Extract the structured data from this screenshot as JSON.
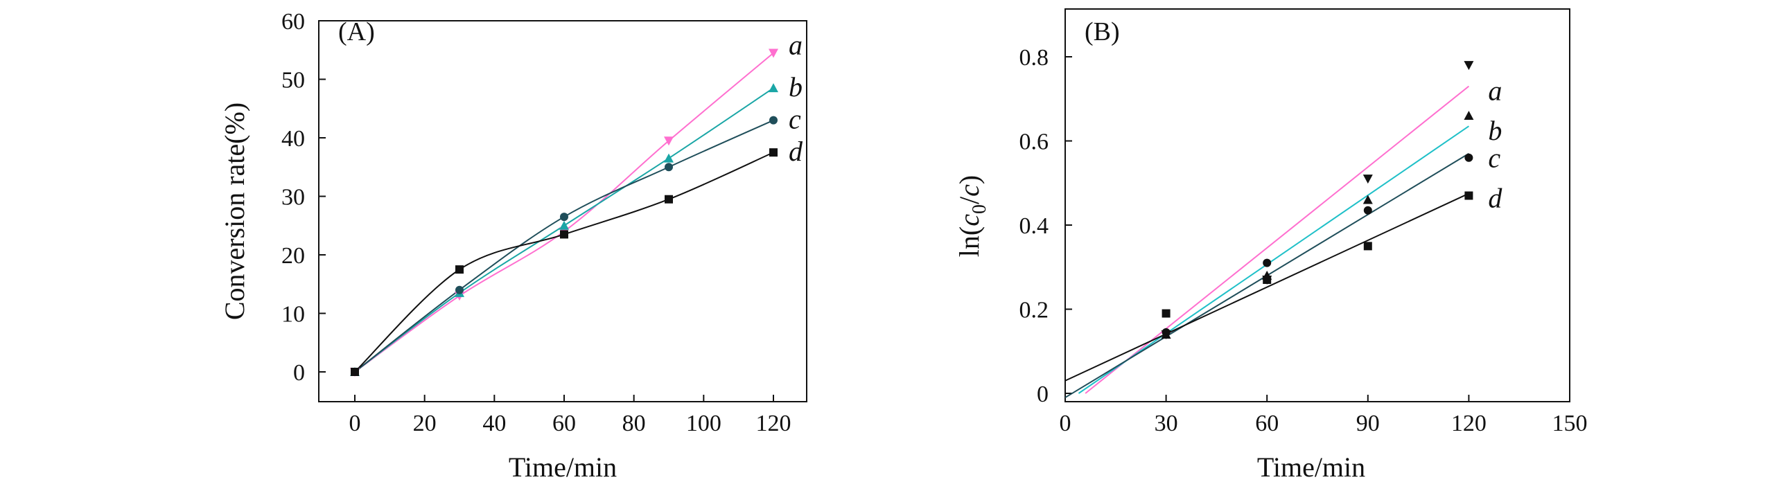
{
  "chart_data": [
    {
      "type": "line",
      "panel_label": "(A)",
      "xlabel": "Time/min",
      "ylabel": "Conversion rate(%)",
      "xlim": [
        -10,
        130
      ],
      "ylim": [
        -5,
        60
      ],
      "xticks": [
        0,
        20,
        40,
        60,
        80,
        100,
        120
      ],
      "yticks": [
        0,
        10,
        20,
        30,
        40,
        50,
        60
      ],
      "x": [
        0,
        30,
        60,
        90,
        120
      ],
      "series": [
        {
          "name": "a",
          "marker": "triangle-down",
          "color": "#ff6fcf",
          "values": [
            0,
            13,
            24,
            39.5,
            54.5
          ]
        },
        {
          "name": "b",
          "marker": "triangle-up",
          "color": "#1aa6a6",
          "values": [
            0,
            13.5,
            25,
            36.5,
            48.5
          ]
        },
        {
          "name": "c",
          "marker": "circle",
          "color": "#1f4e5a",
          "values": [
            0,
            14,
            26.5,
            35,
            43
          ]
        },
        {
          "name": "d",
          "marker": "square",
          "color": "#111111",
          "values": [
            0,
            17.5,
            23.5,
            29.5,
            37.5
          ]
        }
      ]
    },
    {
      "type": "scatter",
      "panel_label": "(B)",
      "xlabel": "Time/min",
      "ylabel_prefix": "ln(",
      "ylabel_c0": "c",
      "ylabel_sub": "0",
      "ylabel_slash": "/",
      "ylabel_c": "c",
      "ylabel_suffix": ")",
      "xlim": [
        0,
        150
      ],
      "ylim": [
        0,
        0.9
      ],
      "xticks": [
        0,
        30,
        60,
        90,
        120,
        150
      ],
      "yticks": [
        0,
        0.2,
        0.4,
        0.6,
        0.8
      ],
      "ytick_labels": [
        "0",
        "0.2",
        "0.4",
        "0.6",
        "0.8"
      ],
      "x": [
        30,
        60,
        90,
        120
      ],
      "series": [
        {
          "name": "a",
          "marker": "triangle-down",
          "point_color": "#111111",
          "line_color": "#ff6fcf",
          "values": [
            0.14,
            0.27,
            0.51,
            0.78
          ],
          "fit": {
            "x_start": 6,
            "y_start": 0,
            "x_end": 120,
            "y_end": 0.73
          }
        },
        {
          "name": "b",
          "marker": "triangle-up",
          "point_color": "#111111",
          "line_color": "#1fc0c8",
          "values": [
            0.14,
            0.28,
            0.46,
            0.66
          ],
          "fit": {
            "x_start": 4,
            "y_start": 0,
            "x_end": 120,
            "y_end": 0.635
          }
        },
        {
          "name": "c",
          "marker": "circle",
          "point_color": "#111111",
          "line_color": "#1f4e5a",
          "values": [
            0.145,
            0.31,
            0.435,
            0.56
          ],
          "fit": {
            "x_start": 0,
            "y_start": -0.01,
            "x_end": 120,
            "y_end": 0.57
          }
        },
        {
          "name": "d",
          "marker": "square",
          "point_color": "#111111",
          "line_color": "#111111",
          "values": [
            0.19,
            0.27,
            0.35,
            0.47
          ],
          "fit": {
            "x_start": 0,
            "y_start": 0.03,
            "x_end": 120,
            "y_end": 0.475
          }
        }
      ]
    }
  ]
}
